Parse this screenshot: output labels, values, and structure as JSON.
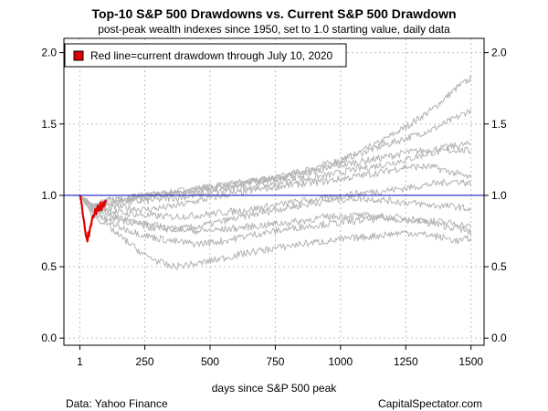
{
  "chart_data": {
    "type": "line",
    "title": "Top-10 S&P 500 Drawdowns vs. Current S&P 500 Drawdown",
    "subtitle": "post-peak wealth indexes since 1950, set to 1.0 starting value, daily data",
    "xlabel": "days since S&P 500 peak",
    "ylabel": "",
    "xlim": [
      -60,
      1550
    ],
    "ylim": [
      -0.05,
      2.1
    ],
    "x_ticks": [
      1,
      250,
      500,
      750,
      1000,
      1250,
      1500
    ],
    "x_tick_labels": [
      "1",
      "250",
      "500",
      "750",
      "1000",
      "1250",
      "1500"
    ],
    "y_ticks": [
      0.0,
      0.5,
      1.0,
      1.5,
      2.0
    ],
    "y_tick_labels": [
      "0.0",
      "0.5",
      "1.0",
      "1.5",
      "2.0"
    ],
    "y_axis_right": true,
    "grid": true,
    "reference_line": {
      "y": 1.0,
      "color": "#0000cc"
    },
    "legend": {
      "position": "top-left",
      "entries": [
        {
          "label": "Red line=current drawdown through July 10, 2020",
          "color": "#e00000"
        }
      ]
    },
    "colors": {
      "historical": "#b3b3b3",
      "current": "#e00000",
      "reference": "#0000cc",
      "grid": "#bfbfbf"
    },
    "series": [
      {
        "role": "historical",
        "x": [
          1,
          50,
          100,
          150,
          250,
          350,
          450,
          550,
          650,
          750,
          850,
          950,
          1050,
          1150,
          1250,
          1350,
          1450,
          1500
        ],
        "values": [
          1.0,
          0.93,
          0.95,
          0.97,
          1.0,
          1.02,
          1.05,
          1.07,
          1.09,
          1.12,
          1.15,
          1.2,
          1.28,
          1.37,
          1.48,
          1.6,
          1.76,
          1.82
        ]
      },
      {
        "role": "historical",
        "x": [
          1,
          50,
          100,
          150,
          250,
          350,
          450,
          550,
          650,
          750,
          850,
          950,
          1050,
          1150,
          1250,
          1350,
          1450,
          1500
        ],
        "values": [
          1.0,
          0.94,
          0.96,
          0.98,
          1.0,
          1.01,
          1.03,
          1.06,
          1.09,
          1.12,
          1.17,
          1.22,
          1.28,
          1.34,
          1.4,
          1.46,
          1.55,
          1.6
        ]
      },
      {
        "role": "historical",
        "x": [
          1,
          50,
          100,
          150,
          250,
          350,
          450,
          550,
          650,
          750,
          850,
          950,
          1050,
          1150,
          1250,
          1350,
          1450,
          1500
        ],
        "values": [
          1.0,
          0.93,
          0.94,
          0.97,
          0.99,
          1.01,
          1.04,
          1.07,
          1.1,
          1.12,
          1.15,
          1.19,
          1.23,
          1.26,
          1.3,
          1.32,
          1.35,
          1.36
        ]
      },
      {
        "role": "historical",
        "x": [
          1,
          50,
          100,
          150,
          250,
          350,
          450,
          550,
          650,
          750,
          850,
          950,
          1050,
          1150,
          1250,
          1350,
          1450,
          1500
        ],
        "values": [
          1.0,
          0.92,
          0.93,
          0.95,
          0.96,
          0.98,
          1.0,
          1.03,
          1.06,
          1.09,
          1.11,
          1.14,
          1.18,
          1.21,
          1.25,
          1.3,
          1.32,
          1.31
        ]
      },
      {
        "role": "historical",
        "x": [
          1,
          50,
          100,
          150,
          250,
          350,
          450,
          550,
          650,
          750,
          850,
          950,
          1050,
          1150,
          1250,
          1350,
          1450,
          1500
        ],
        "values": [
          1.0,
          0.91,
          0.9,
          0.92,
          0.9,
          0.92,
          0.96,
          1.0,
          1.03,
          1.06,
          1.08,
          1.1,
          1.13,
          1.16,
          1.2,
          1.2,
          1.15,
          1.12
        ]
      },
      {
        "role": "historical",
        "x": [
          1,
          50,
          100,
          150,
          250,
          350,
          450,
          550,
          650,
          750,
          850,
          950,
          1050,
          1150,
          1250,
          1350,
          1450,
          1500
        ],
        "values": [
          1.0,
          0.92,
          0.9,
          0.88,
          0.86,
          0.85,
          0.86,
          0.88,
          0.9,
          0.93,
          0.96,
          0.98,
          1.01,
          1.03,
          1.05,
          1.08,
          1.1,
          1.08
        ]
      },
      {
        "role": "historical",
        "x": [
          1,
          50,
          100,
          150,
          250,
          350,
          450,
          550,
          650,
          750,
          850,
          950,
          1050,
          1150,
          1250,
          1350,
          1450,
          1500
        ],
        "values": [
          1.0,
          0.9,
          0.88,
          0.85,
          0.78,
          0.76,
          0.78,
          0.82,
          0.86,
          0.9,
          0.93,
          0.96,
          0.98,
          0.97,
          0.95,
          0.93,
          0.92,
          0.9
        ]
      },
      {
        "role": "historical",
        "x": [
          1,
          50,
          100,
          150,
          250,
          350,
          450,
          550,
          650,
          750,
          850,
          950,
          1050,
          1150,
          1250,
          1350,
          1450,
          1500
        ],
        "values": [
          1.0,
          0.88,
          0.85,
          0.83,
          0.8,
          0.77,
          0.75,
          0.76,
          0.78,
          0.8,
          0.82,
          0.85,
          0.86,
          0.85,
          0.84,
          0.82,
          0.8,
          0.78
        ]
      },
      {
        "role": "historical",
        "x": [
          1,
          50,
          100,
          150,
          250,
          350,
          450,
          550,
          650,
          750,
          850,
          950,
          1050,
          1150,
          1250,
          1350,
          1450,
          1500
        ],
        "values": [
          1.0,
          0.87,
          0.83,
          0.78,
          0.72,
          0.68,
          0.66,
          0.68,
          0.72,
          0.75,
          0.78,
          0.8,
          0.82,
          0.84,
          0.83,
          0.8,
          0.77,
          0.74
        ]
      },
      {
        "role": "historical",
        "x": [
          1,
          50,
          100,
          150,
          250,
          350,
          450,
          550,
          650,
          750,
          850,
          950,
          1050,
          1150,
          1250,
          1350,
          1450,
          1500
        ],
        "values": [
          1.0,
          0.86,
          0.8,
          0.72,
          0.58,
          0.5,
          0.52,
          0.56,
          0.6,
          0.63,
          0.66,
          0.68,
          0.7,
          0.72,
          0.74,
          0.72,
          0.68,
          0.7
        ]
      },
      {
        "role": "current",
        "x": [
          1,
          3,
          6,
          9,
          12,
          15,
          18,
          21,
          24,
          27,
          30,
          33,
          36,
          40,
          45,
          50,
          55,
          60,
          65,
          70,
          75,
          80,
          85,
          90,
          95,
          100
        ],
        "values": [
          1.0,
          0.99,
          0.96,
          0.93,
          0.87,
          0.84,
          0.8,
          0.76,
          0.72,
          0.7,
          0.68,
          0.74,
          0.72,
          0.77,
          0.8,
          0.86,
          0.85,
          0.89,
          0.88,
          0.92,
          0.9,
          0.93,
          0.91,
          0.94,
          0.93,
          0.95
        ]
      }
    ]
  },
  "source_left": "Data: Yahoo Finance",
  "source_right": "CapitalSpectator.com"
}
